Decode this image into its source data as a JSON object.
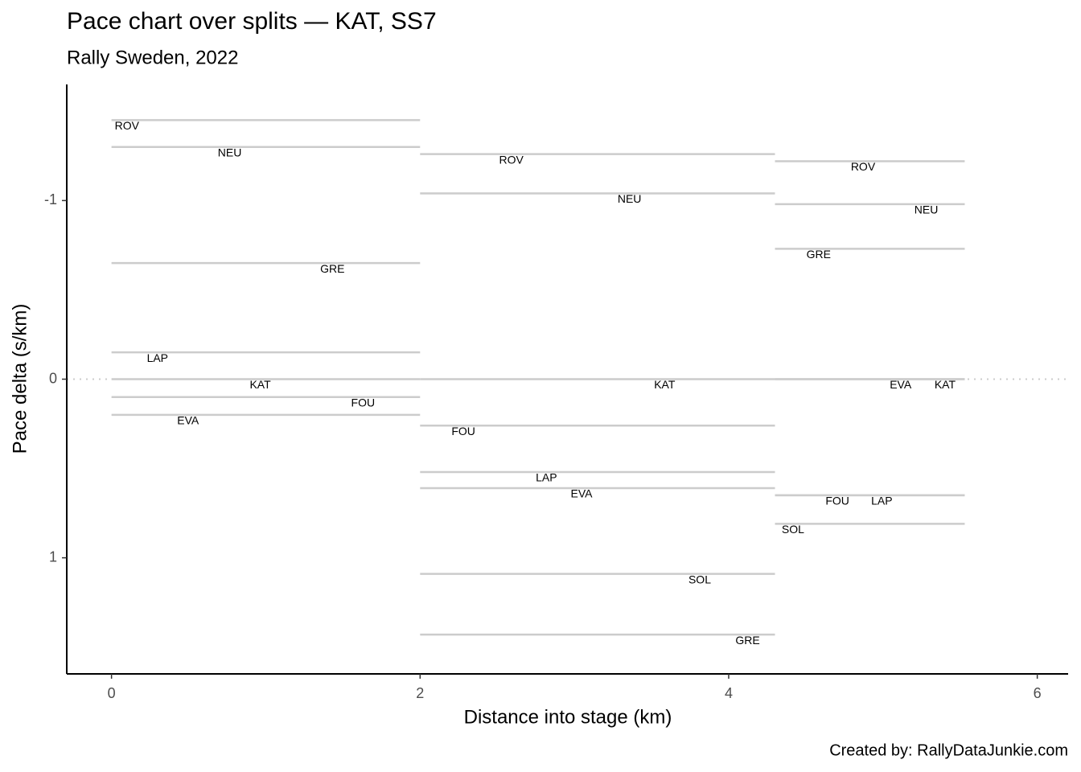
{
  "chart_data": {
    "type": "segment",
    "title": "Pace chart over splits — KAT, SS7",
    "subtitle": "Rally Sweden, 2022",
    "x_label": "Distance into stage (km)",
    "y_label": "Pace delta (s/km)",
    "caption": "Created by: RallyDataJunkie.com",
    "splits": [
      0,
      2,
      4.3,
      5.53
    ],
    "series": [
      {
        "name": "ROV",
        "values": [
          -1.45,
          -1.26,
          -1.22
        ]
      },
      {
        "name": "NEU",
        "values": [
          -1.3,
          -1.04,
          -0.98
        ]
      },
      {
        "name": "GRE",
        "values": [
          -0.65,
          1.43,
          -0.73
        ]
      },
      {
        "name": "LAP",
        "values": [
          -0.15,
          0.52,
          0.65
        ]
      },
      {
        "name": "KAT",
        "values": [
          0,
          0,
          0
        ]
      },
      {
        "name": "FOU",
        "values": [
          0.1,
          0.26,
          0.65
        ]
      },
      {
        "name": "EVA",
        "values": [
          0.2,
          0.61,
          0
        ]
      },
      {
        "name": "SOL",
        "values": [
          null,
          1.09,
          0.81
        ]
      }
    ],
    "color": "#cccccc",
    "hline": 0,
    "xlim": [
      -0.29,
      6.2
    ],
    "xticks": [
      0,
      2,
      4,
      6
    ],
    "ylim": [
      -1.65,
      1.65
    ],
    "yticks": [
      -1,
      0,
      1
    ],
    "y_reversed": true,
    "grid": false
  }
}
